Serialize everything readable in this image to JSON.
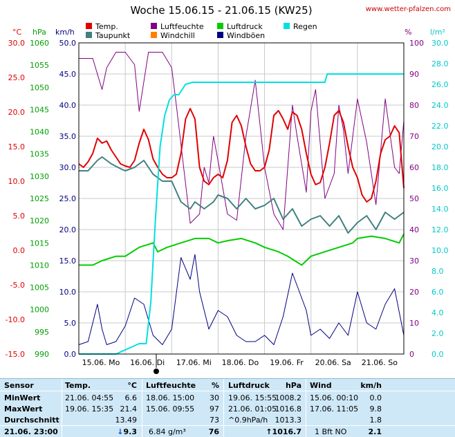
{
  "header": {
    "title": "Woche 15.06.15 - 21.06.15 (KW25)",
    "url": "www.wetter-pfalzen.com"
  },
  "legend": [
    {
      "label": "Temp.",
      "color": "#e00000"
    },
    {
      "label": "Luftfeuchte",
      "color": "#800080"
    },
    {
      "label": "Luftdruck",
      "color": "#00cc00"
    },
    {
      "label": "Regen",
      "color": "#00e0e0"
    },
    {
      "label": "Taupunkt",
      "color": "#408080"
    },
    {
      "label": "Windchill",
      "color": "#ff8000"
    },
    {
      "label": "Windböen",
      "color": "#000080"
    }
  ],
  "units": {
    "temp": "°C",
    "pressure": "hPa",
    "wind": "km/h",
    "humidity": "%",
    "rain": "l/m²"
  },
  "colors": {
    "temp": "#e00000",
    "pressure": "#00cc00",
    "wind": "#000080",
    "humidity": "#800080",
    "rain": "#00e0e0",
    "dewpoint": "#408080"
  },
  "chart_data": {
    "type": "line",
    "x_categories": [
      "15.06. Mo",
      "16.06. Di",
      "17.06. Mi",
      "18.06. Do",
      "19.06. Fr",
      "20.06. Sa",
      "21.06. So"
    ],
    "axes": {
      "temp": {
        "range": [
          -15,
          30
        ],
        "ticks": [
          "-15.0",
          "-10.0",
          "-5.0",
          "0.0",
          "5.0",
          "10.0",
          "15.0",
          "20.0",
          "25.0",
          "30.0"
        ]
      },
      "pressure": {
        "range": [
          990,
          1060
        ],
        "ticks": [
          "990",
          "995",
          "1000",
          "1005",
          "1010",
          "1015",
          "1020",
          "1025",
          "1030",
          "1035",
          "1040",
          "1045",
          "1050",
          "1055",
          "1060"
        ]
      },
      "wind": {
        "range": [
          0,
          50
        ],
        "ticks": [
          "0.0",
          "5.0",
          "10.0",
          "15.0",
          "20.0",
          "25.0",
          "30.0",
          "35.0",
          "40.0",
          "45.0",
          "50.0"
        ]
      },
      "humidity": {
        "range": [
          0,
          100
        ],
        "ticks": [
          "0",
          "10",
          "20",
          "30",
          "40",
          "50",
          "60",
          "70",
          "80",
          "90",
          "100"
        ]
      },
      "rain": {
        "range": [
          0,
          30
        ],
        "ticks": [
          "0.0",
          "2.0",
          "4.0",
          "6.0",
          "8.0",
          "10.0",
          "12.0",
          "14.0",
          "16.0",
          "18.0",
          "20.0",
          "22.0",
          "24.0",
          "26.0",
          "28.0",
          "30.0"
        ]
      }
    },
    "grid": true,
    "series": [
      {
        "name": "Temp.",
        "axis": "temp",
        "t": [
          0,
          0.1,
          0.2,
          0.3,
          0.4,
          0.5,
          0.6,
          0.7,
          0.8,
          0.9,
          1,
          1.1,
          1.2,
          1.3,
          1.4,
          1.5,
          1.6,
          1.7,
          1.8,
          1.9,
          2,
          2.1,
          2.2,
          2.3,
          2.4,
          2.5,
          2.6,
          2.7,
          2.8,
          2.9,
          3,
          3.1,
          3.2,
          3.3,
          3.4,
          3.5,
          3.6,
          3.7,
          3.8,
          3.9,
          4,
          4.1,
          4.2,
          4.3,
          4.4,
          4.5,
          4.6,
          4.7,
          4.8,
          4.9,
          5,
          5.1,
          5.2,
          5.3,
          5.4,
          5.5,
          5.6,
          5.7,
          5.8,
          5.9,
          6,
          6.1,
          6.2,
          6.3,
          6.4,
          6.5,
          6.6,
          6.7,
          6.8,
          6.9,
          7
        ],
        "values": [
          12.5,
          12,
          12.8,
          14,
          16.2,
          15.5,
          15.8,
          14.5,
          13.5,
          12.5,
          12.2,
          12,
          13,
          15.5,
          17.5,
          16,
          13.2,
          12,
          11,
          10.5,
          10.5,
          11,
          14,
          19,
          20.5,
          19,
          12,
          10,
          9.5,
          10.5,
          11,
          10.5,
          13,
          18.5,
          19.5,
          18,
          15,
          12.5,
          11.5,
          11.5,
          12,
          14.5,
          19.5,
          20.2,
          19,
          17.5,
          20,
          19.5,
          17.5,
          14,
          11,
          9.5,
          9.8,
          12,
          15.5,
          19.5,
          20.2,
          18.5,
          15,
          12,
          10.5,
          8,
          7,
          7.5,
          10,
          14,
          16,
          16.5,
          18,
          17,
          9
        ]
      },
      {
        "name": "Taupunkt",
        "axis": "temp",
        "t": [
          0,
          0.2,
          0.4,
          0.5,
          0.7,
          0.9,
          1,
          1.2,
          1.4,
          1.6,
          1.8,
          2,
          2.1,
          2.2,
          2.4,
          2.5,
          2.7,
          2.9,
          3,
          3.2,
          3.4,
          3.6,
          3.8,
          4,
          4.2,
          4.4,
          4.6,
          4.8,
          5,
          5.2,
          5.4,
          5.6,
          5.8,
          6,
          6.2,
          6.4,
          6.6,
          6.8,
          7
        ],
        "values": [
          11.5,
          11.5,
          13,
          13.5,
          12.5,
          11.8,
          11.5,
          12,
          13,
          11,
          10,
          10,
          8.5,
          7,
          6,
          7,
          6,
          7,
          8,
          7.5,
          6,
          7.5,
          6,
          6.5,
          7.5,
          4.5,
          6,
          3.5,
          4.5,
          5,
          3.5,
          5,
          2.5,
          4,
          5,
          3,
          5.5,
          4.5,
          5.5
        ]
      },
      {
        "name": "Luftfeuchte",
        "axis": "humidity",
        "t": [
          0,
          0.3,
          0.5,
          0.6,
          0.8,
          1,
          1.2,
          1.3,
          1.5,
          1.8,
          2,
          2.1,
          2.4,
          2.6,
          2.7,
          2.8,
          2.9,
          3,
          3.2,
          3.4,
          3.6,
          3.8,
          4,
          4.2,
          4.4,
          4.6,
          4.7,
          4.9,
          5,
          5.1,
          5.3,
          5.5,
          5.6,
          5.7,
          5.8,
          6,
          6.2,
          6.4,
          6.6,
          6.8,
          6.9,
          7
        ],
        "values": [
          95,
          95,
          85,
          92,
          97,
          97,
          93,
          78,
          97,
          97,
          92,
          80,
          42,
          45,
          60,
          55,
          70,
          62,
          45,
          43,
          70,
          88,
          60,
          45,
          40,
          80,
          70,
          52,
          78,
          85,
          50,
          58,
          80,
          72,
          58,
          82,
          68,
          48,
          82,
          60,
          58,
          75
        ]
      },
      {
        "name": "Luftdruck",
        "axis": "pressure",
        "t": [
          0,
          0.3,
          0.5,
          0.8,
          1,
          1.3,
          1.6,
          1.7,
          1.9,
          2.2,
          2.5,
          2.8,
          3,
          3.2,
          3.5,
          3.8,
          4,
          4.3,
          4.5,
          4.8,
          5,
          5.3,
          5.6,
          5.9,
          6,
          6.3,
          6.6,
          6.9,
          7
        ],
        "values": [
          1010,
          1010,
          1011,
          1012,
          1012,
          1014,
          1015,
          1013,
          1014,
          1015,
          1016,
          1016,
          1015,
          1015.5,
          1016,
          1015,
          1014,
          1013,
          1012,
          1010,
          1012,
          1013,
          1014,
          1015,
          1016,
          1016.5,
          1016,
          1015,
          1017
        ]
      },
      {
        "name": "Windböen",
        "axis": "wind",
        "t": [
          0,
          0.2,
          0.4,
          0.5,
          0.6,
          0.8,
          1,
          1.2,
          1.4,
          1.6,
          1.8,
          2,
          2.2,
          2.4,
          2.5,
          2.6,
          2.8,
          3,
          3.2,
          3.4,
          3.6,
          3.8,
          4,
          4.2,
          4.4,
          4.6,
          4.7,
          4.9,
          5,
          5.2,
          5.4,
          5.6,
          5.8,
          6,
          6.2,
          6.4,
          6.6,
          6.8,
          7
        ],
        "values": [
          1.5,
          2,
          8,
          4,
          1.5,
          2,
          4.5,
          9,
          8,
          3,
          1.5,
          4,
          15.5,
          12,
          16,
          10,
          4,
          7,
          6,
          3,
          2,
          2,
          3,
          1.5,
          6,
          13,
          11,
          7,
          3,
          4,
          2.5,
          5,
          3,
          10,
          5,
          4,
          8,
          10.5,
          3
        ]
      },
      {
        "name": "Regen",
        "axis": "rain",
        "t": [
          0,
          0.8,
          1.3,
          1.45,
          1.55,
          1.65,
          1.75,
          1.85,
          1.95,
          2.05,
          2.15,
          2.3,
          2.45,
          2.6,
          3,
          5,
          5.3,
          5.35,
          6,
          7
        ],
        "values": [
          0,
          0,
          1,
          1,
          5,
          13,
          20,
          23,
          24.5,
          25,
          25,
          26,
          26.2,
          26.2,
          26.2,
          26.2,
          26.2,
          27,
          27,
          27
        ]
      }
    ]
  },
  "stats": {
    "headers": {
      "sensor": "Sensor",
      "temp": "Temp.",
      "temp_unit": "°C",
      "hum": "Luftfeuchte",
      "hum_unit": "%",
      "press": "Luftdruck",
      "press_unit": "hPa",
      "wind": "Wind",
      "wind_unit": "km/h"
    },
    "rows": [
      {
        "label": "MinWert",
        "temp_time": "21.06.  04:55",
        "temp_val": "6.6",
        "hum_time": "18.06.  15:00",
        "hum_val": "30",
        "press_time": "19.06.  15:55",
        "press_val": "1008.2",
        "wind_time": "15.06.  00:10",
        "wind_val": "0.0"
      },
      {
        "label": "MaxWert",
        "temp_time": "19.06.  15:35",
        "temp_val": "21.4",
        "hum_time": "15.06.  09:55",
        "hum_val": "97",
        "press_time": "21.06.  01:05",
        "press_val": "1016.8",
        "wind_time": "17.06.  11:05",
        "wind_val": "9.8"
      },
      {
        "label": "Durchschnitt",
        "temp_time": "",
        "temp_val": "13.49",
        "hum_time": "",
        "hum_val": "73",
        "press_time": "^0.9hPa/h",
        "press_val": "1013.3",
        "wind_time": "",
        "wind_val": "1.8"
      }
    ],
    "current": {
      "label": "21.06. 23:00",
      "temp": "9.3",
      "temp_arrow": "↓",
      "hum_abs": "6.84 g/m³",
      "hum": "76",
      "press_arrow": "↑",
      "press": "1016.7",
      "wind_bft": "1 Bft NO",
      "wind": "2.1"
    }
  }
}
